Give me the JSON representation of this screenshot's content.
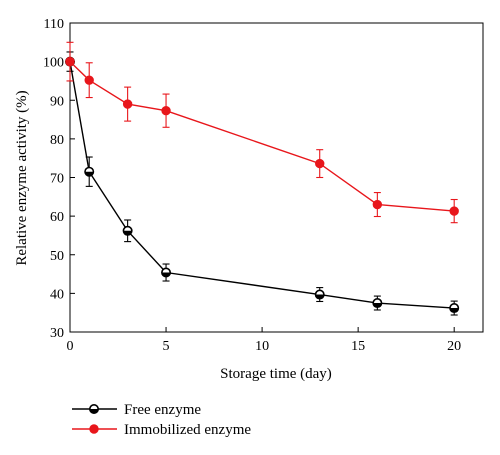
{
  "chart_data": {
    "type": "line",
    "xlabel": "Storage time (day)",
    "ylabel": "Relative enzyme activity (%)",
    "xlim": [
      0,
      21.5
    ],
    "ylim": [
      30,
      110
    ],
    "xticks": [
      0,
      5,
      10,
      15,
      20
    ],
    "yticks": [
      30,
      40,
      50,
      60,
      70,
      80,
      90,
      100,
      110
    ],
    "legend_position": "below-left",
    "series": [
      {
        "name": "Free enzyme",
        "color": "#000000",
        "marker": "half-filled-circle",
        "x": [
          0,
          1,
          3,
          5,
          13,
          16,
          20
        ],
        "y": [
          100,
          71.5,
          56.2,
          45.4,
          39.7,
          37.5,
          36.2
        ],
        "err": [
          2.5,
          3.8,
          2.8,
          2.2,
          1.8,
          1.8,
          1.8
        ]
      },
      {
        "name": "Immobilized enzyme",
        "color": "#e8161b",
        "marker": "filled-circle",
        "x": [
          0,
          1,
          3,
          5,
          13,
          16,
          20
        ],
        "y": [
          100,
          95.2,
          89.0,
          87.3,
          73.6,
          63.0,
          61.3
        ],
        "err": [
          5.0,
          4.5,
          4.4,
          4.3,
          3.6,
          3.1,
          3.0
        ]
      }
    ]
  }
}
